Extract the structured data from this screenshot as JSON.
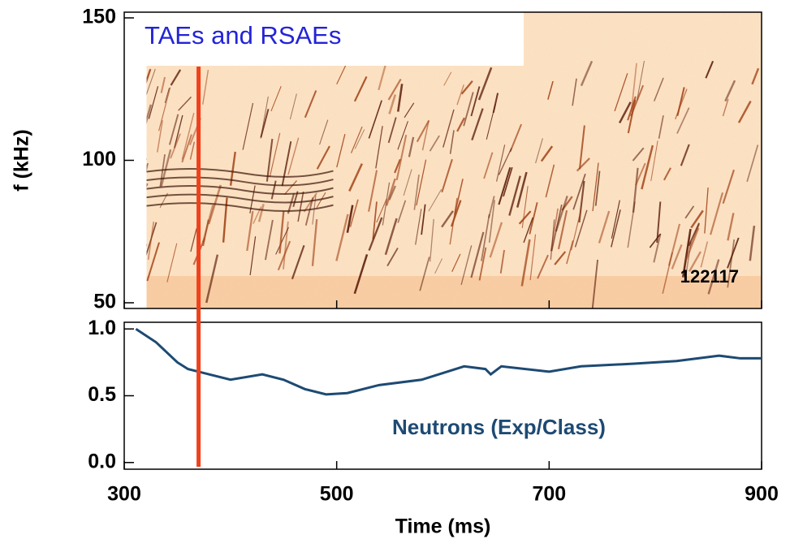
{
  "chart_data": [
    {
      "type": "spectrogram",
      "title": "TAEs and RSAEs",
      "annotation": "122117",
      "ylabel": "f (kHz)",
      "xlim": [
        300,
        900
      ],
      "ylim": [
        48,
        152
      ],
      "yticks": [
        50,
        100,
        150
      ],
      "data_xlim": [
        321,
        900
      ],
      "vline": {
        "x": 370,
        "color": "#f0401c"
      }
    },
    {
      "type": "line",
      "xlabel": "Time (ms)",
      "xlim": [
        300,
        900
      ],
      "xticks": [
        300,
        500,
        700,
        900
      ],
      "ylim": [
        -0.05,
        1.05
      ],
      "yticks": [
        {
          "value": 0,
          "label": "0.0"
        },
        {
          "value": 0.5,
          "label": "0.5"
        },
        {
          "value": 1,
          "label": "1.0"
        }
      ],
      "x": [
        311,
        330,
        350,
        360,
        380,
        400,
        430,
        450,
        470,
        490,
        510,
        540,
        580,
        620,
        640,
        645,
        655,
        700,
        730,
        780,
        820,
        860,
        880,
        900
      ],
      "series": [
        {
          "name": "Neutrons (Exp/Class)",
          "color": "#1d4a73",
          "values": [
            1.0,
            0.9,
            0.75,
            0.7,
            0.66,
            0.62,
            0.66,
            0.62,
            0.55,
            0.51,
            0.52,
            0.58,
            0.62,
            0.72,
            0.7,
            0.66,
            0.72,
            0.68,
            0.72,
            0.74,
            0.76,
            0.8,
            0.78,
            0.78
          ]
        }
      ]
    }
  ]
}
